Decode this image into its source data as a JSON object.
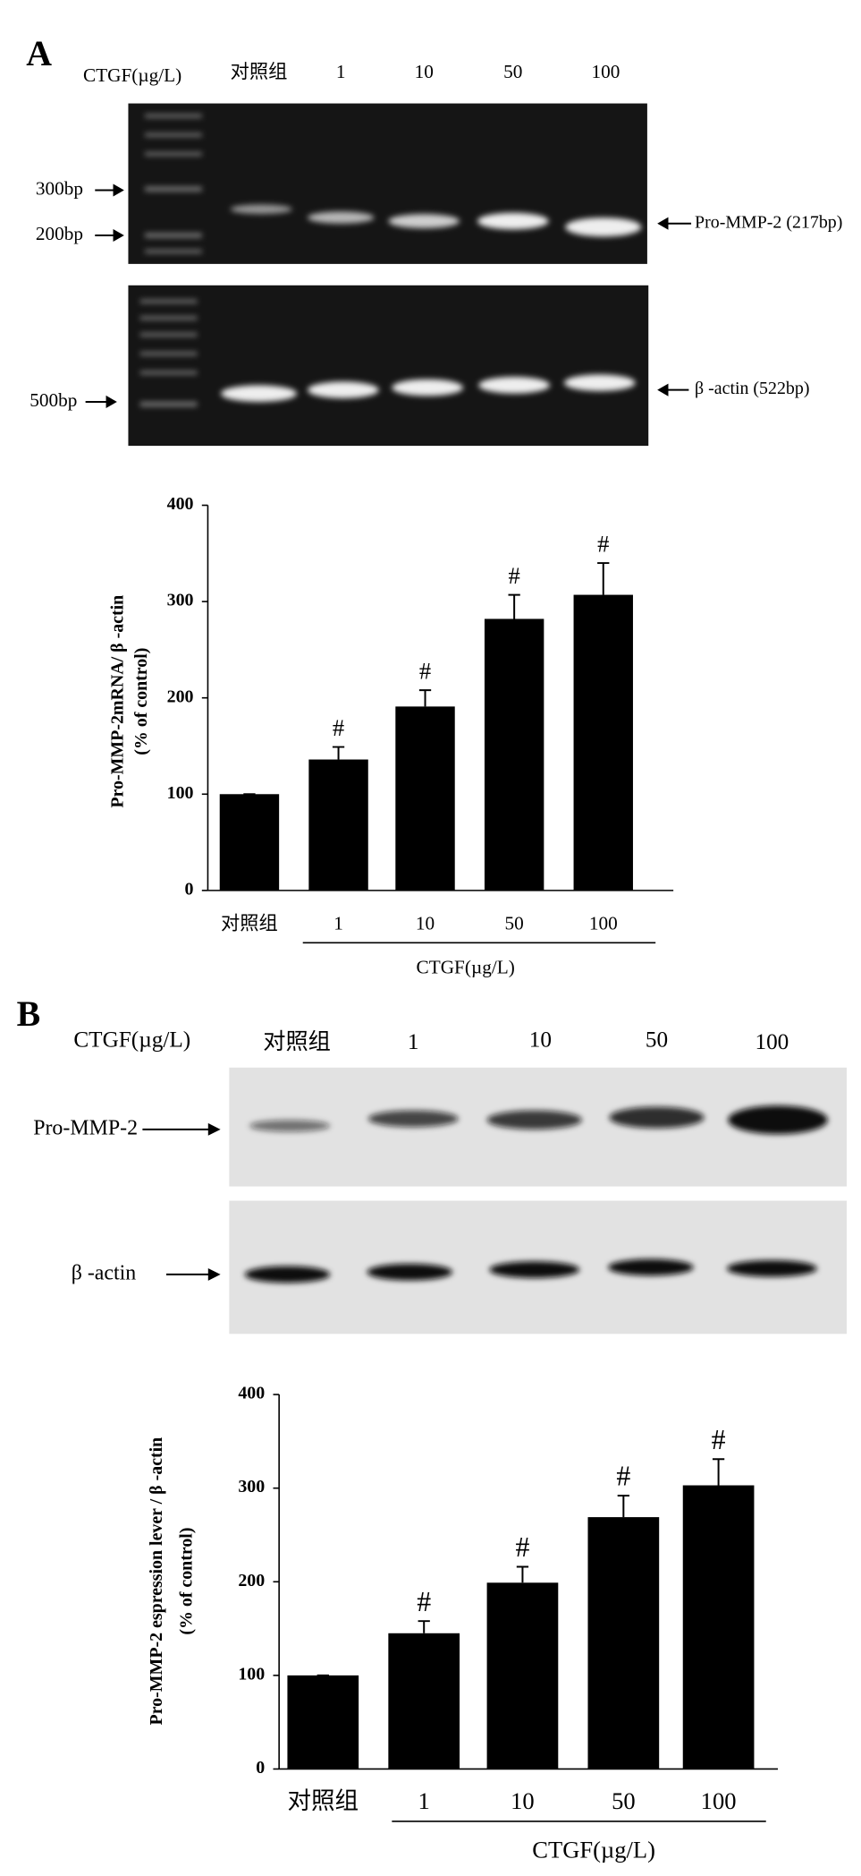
{
  "gels": [
    {
      "panel_label": "A",
      "header": "CTGF(µg/L)",
      "lanes": [
        "对照组",
        "1",
        "10",
        "50",
        "100"
      ],
      "left_labels": [
        "300bp",
        "200bp",
        "500bp"
      ],
      "right_labels": [
        "Pro-MMP-2 (217bp)",
        "β -actin (522bp)"
      ]
    },
    {
      "panel_label": "B",
      "header": "CTGF(µg/L)",
      "lanes": [
        "对照组",
        "1",
        "10",
        "50",
        "100"
      ],
      "left_labels": [
        "Pro-MMP-2",
        "β -actin"
      ]
    }
  ],
  "chart_data": [
    {
      "type": "bar",
      "categories": [
        "对照组",
        "1",
        "10",
        "50",
        "100"
      ],
      "values": [
        100,
        136,
        191,
        282,
        307
      ],
      "errors": [
        0,
        13,
        17,
        25,
        33
      ],
      "markers": [
        null,
        "#",
        "#",
        "#",
        "#"
      ],
      "color": "#000000",
      "xlabel": "CTGF(µg/L)",
      "ylabel": [
        "Pro-MMP-2mRNA/ β -actin",
        "(% of control)"
      ],
      "ylim": [
        0,
        400
      ],
      "yticks": [
        0,
        100,
        200,
        300,
        400
      ]
    },
    {
      "type": "bar",
      "categories": [
        "对照组",
        "1",
        "10",
        "50",
        "100"
      ],
      "values": [
        100,
        145,
        199,
        269,
        303
      ],
      "errors": [
        0,
        13,
        17,
        23,
        28
      ],
      "markers": [
        null,
        "#",
        "#",
        "#",
        "#"
      ],
      "color": "#000000",
      "xlabel": "CTGF(µg/L)",
      "ylabel": [
        "Pro-MMP-2 espression lever / β -actin",
        "(% of control)"
      ],
      "ylim": [
        0,
        400
      ],
      "yticks": [
        0,
        100,
        200,
        300,
        400
      ]
    }
  ]
}
